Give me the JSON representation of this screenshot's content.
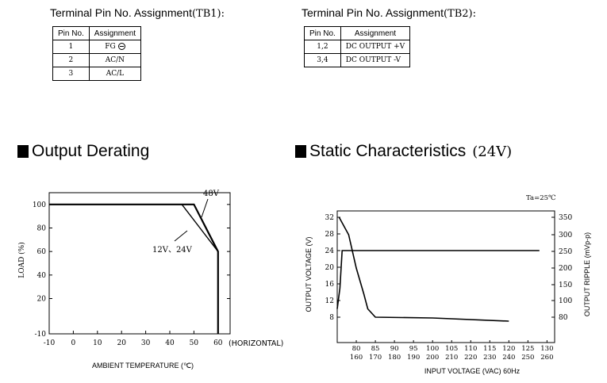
{
  "tb1": {
    "title": "Terminal Pin No. Assignment",
    "title_code": "(TB1):",
    "headers": [
      "Pin No.",
      "Assignment"
    ],
    "rows": [
      {
        "pin": "1",
        "assignment": "FG",
        "icon": "ground-icon"
      },
      {
        "pin": "2",
        "assignment": "AC/N"
      },
      {
        "pin": "3",
        "assignment": "AC/L"
      }
    ]
  },
  "tb2": {
    "title": "Terminal Pin No. Assignment",
    "title_code": "(TB2):",
    "headers": [
      "Pin No.",
      "Assignment"
    ],
    "rows": [
      {
        "pin": "1,2",
        "assignment": "DC OUTPUT +V"
      },
      {
        "pin": "3,4",
        "assignment": "DC OUTPUT -V"
      }
    ]
  },
  "derating": {
    "title": "Output Derating",
    "chart_data": {
      "type": "line",
      "xlabel": "AMBIENT TEMPERATURE (℃)",
      "ylabel": "LOAD (%)",
      "x_ticks": [
        "-10",
        "0",
        "10",
        "20",
        "30",
        "40",
        "50",
        "60"
      ],
      "x_extra_label": "(HORIZONTAL)",
      "y_ticks": [
        "-10",
        "20",
        "40",
        "60",
        "80",
        "100"
      ],
      "xlim": [
        -10,
        65
      ],
      "ylim": [
        -10,
        110
      ],
      "series": [
        {
          "name": "48V",
          "x": [
            -10,
            50,
            60,
            60
          ],
          "y": [
            100,
            100,
            60,
            -10
          ]
        },
        {
          "name": "12V、24V",
          "x": [
            -10,
            45,
            60
          ],
          "y": [
            100,
            100,
            60
          ]
        }
      ]
    }
  },
  "static": {
    "title": "Static Characteristics",
    "subtitle": "(24V)",
    "chart_data": {
      "type": "line",
      "annotation": "Ta=25℃",
      "xlabel": "INPUT VOLTAGE (VAC) 60Hz",
      "ylabel_left": "OUTPUT VOLTAGE (V)",
      "ylabel_right": "OUTPUT RIPPLE (mVp-p)",
      "x_ticks_top": [
        "80",
        "85",
        "90",
        "95",
        "100",
        "105",
        "110",
        "115",
        "120",
        "125",
        "130"
      ],
      "x_ticks_bottom": [
        "160",
        "170",
        "180",
        "190",
        "200",
        "210",
        "220",
        "230",
        "240",
        "250",
        "260"
      ],
      "y_left_ticks": [
        "8",
        "12",
        "16",
        "20",
        "24",
        "28",
        "32"
      ],
      "y_right_ticks": [
        "80",
        "100",
        "150",
        "200",
        "250",
        "300",
        "350"
      ],
      "xlim": [
        75,
        132
      ],
      "series": [
        {
          "axis": "left",
          "x": [
            75,
            75.7,
            76.3,
            77.5,
            128
          ],
          "y": [
            10,
            15,
            24,
            24,
            24
          ]
        },
        {
          "axis": "right",
          "x": [
            75.5,
            78,
            80,
            82,
            83,
            85,
            100,
            120
          ],
          "y": [
            350,
            300,
            200,
            120,
            90,
            80,
            78,
            70
          ]
        }
      ]
    }
  }
}
